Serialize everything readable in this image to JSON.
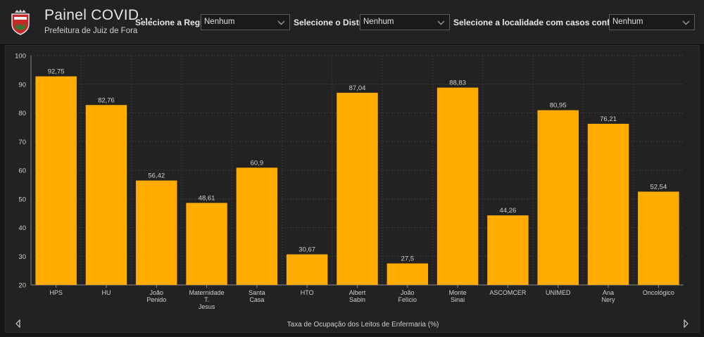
{
  "header": {
    "title": "Painel COVID…",
    "subtitle": "Prefeitura de Juiz de Fora",
    "logo_icon": "city-coat-of-arms-icon"
  },
  "filters": {
    "region": {
      "label": "Selecione a Região",
      "value": "Nenhum"
    },
    "district": {
      "label": "Selecione o Distrito",
      "value": "Nenhum"
    },
    "locality": {
      "label": "Selecione a localidade com casos confirmados",
      "value": "Nenhum"
    }
  },
  "navigation": {
    "prev_icon": "arrow-left-icon",
    "next_icon": "arrow-right-icon"
  },
  "colors": {
    "bar": "#ffab00",
    "background": "#222222",
    "grid": "#3a3a3a",
    "text": "#cfcfcf"
  },
  "chart_data": {
    "type": "bar",
    "title": "",
    "xlabel": "Taxa de Ocupação dos Leitos de Enfermaria (%)",
    "ylabel": "",
    "ylim": [
      20,
      100
    ],
    "yticks": [
      20,
      30,
      40,
      50,
      60,
      70,
      80,
      90,
      100
    ],
    "grid": true,
    "categories": [
      [
        "HPS"
      ],
      [
        "HU"
      ],
      [
        "João",
        "Penido"
      ],
      [
        "Maternidade",
        "T.",
        "Jesus"
      ],
      [
        "Santa",
        "Casa"
      ],
      [
        "HTO"
      ],
      [
        "Albert",
        "Sabin"
      ],
      [
        "João",
        "Felício"
      ],
      [
        "Monte",
        "Sinai"
      ],
      [
        "ASCOMCER"
      ],
      [
        "UNIMED"
      ],
      [
        "Ana",
        "Nery"
      ],
      [
        "Oncológico"
      ]
    ],
    "values": [
      92.75,
      82.76,
      56.42,
      48.61,
      60.9,
      30.67,
      87.04,
      27.5,
      88.83,
      44.26,
      80.95,
      76.21,
      52.54
    ],
    "value_labels": [
      "92,75",
      "82,76",
      "56,42",
      "48,61",
      "60,9",
      "30,67",
      "87,04",
      "27,5",
      "88,83",
      "44,26",
      "80,95",
      "76,21",
      "52,54"
    ]
  }
}
